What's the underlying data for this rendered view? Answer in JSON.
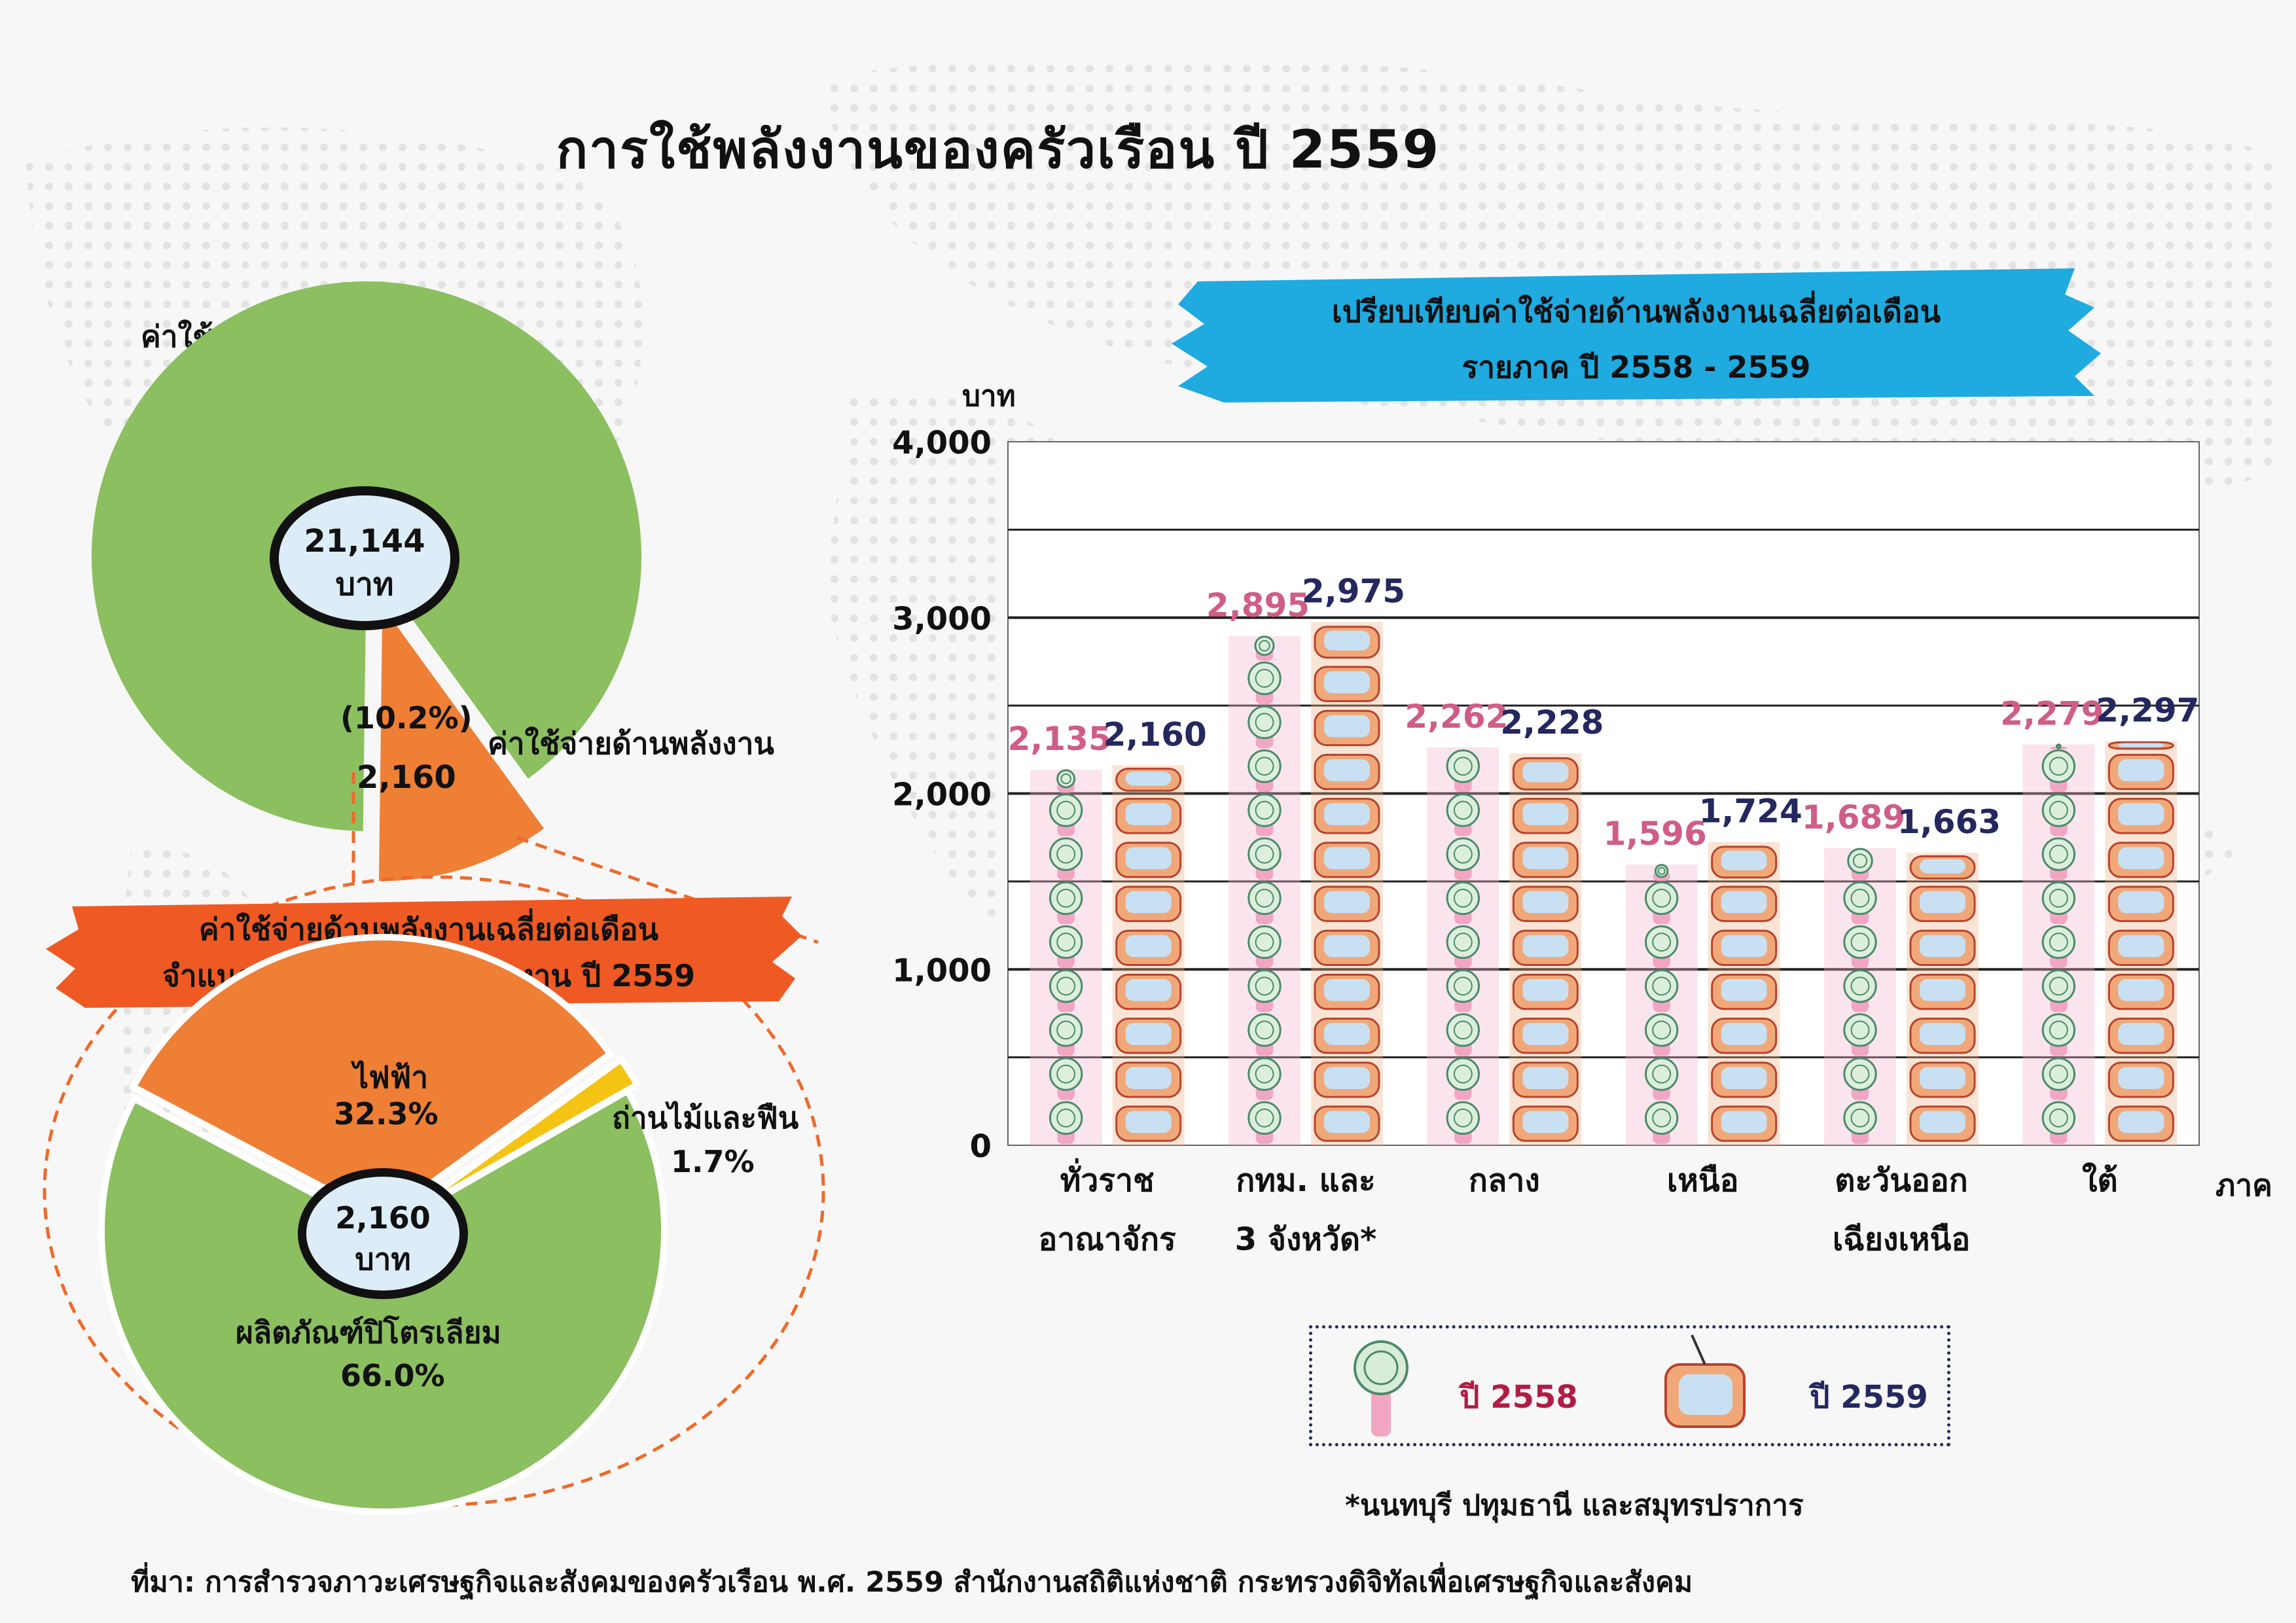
{
  "title": "การใช้พลังงานของครัวเรือน ปี 2559",
  "total_expense": {
    "label": "ค่าใช้จ่ายของครัวเรือนทั้งสิ้น",
    "value": "21,144",
    "unit": "บาท",
    "energy_share_label": "(10.2%)",
    "energy_label": "ค่าใช้จ่ายด้านพลังงาน",
    "energy_value": "2,160",
    "energy_share": 10.2
  },
  "energy_by_type": {
    "banner_line1": "ค่าใช้จ่ายด้านพลังงานเฉลี่ยต่อเดือน",
    "banner_line2": "จำแนกตามประเภทของพลังงาน ปี 2559",
    "center_value": "2,160",
    "center_unit": "บาท",
    "slices": [
      {
        "label": "ไฟฟ้า",
        "pct_label": "32.3%",
        "value": 32.3,
        "color": "#ee7f35"
      },
      {
        "label": "ถ่านไม้และฟืน",
        "pct_label": "1.7%",
        "value": 1.7,
        "color": "#f5c313"
      },
      {
        "label": "ผลิตภัณฑ์ปิโตรเลียม",
        "pct_label": "66.0%",
        "value": 66.0,
        "color": "#8bbf5f"
      }
    ]
  },
  "chart_data": [
    {
      "type": "pie",
      "title": "ค่าใช้จ่ายของครัวเรือนทั้งสิ้น",
      "categories": [
        "ค่าใช้จ่ายอื่น",
        "ค่าใช้จ่ายด้านพลังงาน"
      ],
      "values": [
        89.8,
        10.2
      ],
      "colors": [
        "#8bbf5f",
        "#ee7f35"
      ]
    },
    {
      "type": "pie",
      "title": "ค่าใช้จ่ายด้านพลังงานเฉลี่ยต่อเดือน จำแนกตามประเภทของพลังงาน ปี 2559",
      "categories": [
        "ไฟฟ้า",
        "ถ่านไม้และฟืน",
        "ผลิตภัณฑ์ปิโตรเลียม"
      ],
      "values": [
        32.3,
        1.7,
        66.0
      ],
      "colors": [
        "#ee7f35",
        "#f5c313",
        "#8bbf5f"
      ]
    },
    {
      "type": "bar",
      "title_line1": "เปรียบเทียบค่าใช้จ่ายด้านพลังงานเฉลี่ยต่อเดือน",
      "title_line2": "รายภาค ปี 2558 - 2559",
      "ylabel": "บาท",
      "xlabel": "ภาค",
      "ylim": [
        0,
        4000
      ],
      "yticks": [
        0,
        1000,
        2000,
        3000,
        4000
      ],
      "ytick_labels": [
        "0",
        "1,000",
        "2,000",
        "3,000",
        "4,000"
      ],
      "categories": [
        [
          "ทั่วราช",
          "อาณาจักร"
        ],
        [
          "กทม. และ",
          "3 จังหวัด*"
        ],
        [
          "กลาง",
          ""
        ],
        [
          "เหนือ",
          ""
        ],
        [
          "ตะวันออก",
          "เฉียงเหนือ"
        ],
        [
          "ใต้",
          ""
        ]
      ],
      "series": [
        {
          "name": "ปี 2558",
          "values": [
            2135,
            2895,
            2262,
            1596,
            1689,
            2279
          ],
          "labels": [
            "2,135",
            "2,895",
            "2,262",
            "1,596",
            "1,689",
            "2,279"
          ],
          "color": "#cf5d87"
        },
        {
          "name": "ปี 2559",
          "values": [
            2160,
            2975,
            2228,
            1724,
            1663,
            2297
          ],
          "labels": [
            "2,160",
            "2,975",
            "2,228",
            "1,724",
            "1,663",
            "2,297"
          ],
          "color": "#24285f"
        }
      ],
      "legend_placement": "bottom",
      "grid": true
    }
  ],
  "footnote": "*นนทบุรี   ปทุมธานี   และสมุทรปราการ",
  "source": "ที่มา: การสำรวจภาวะเศรษฐกิจและสังคมของครัวเรือน พ.ศ. 2559  สำนักงานสถิติแห่งชาติ กระทรวงดิจิทัลเพื่อเศรษฐกิจและสังคม"
}
